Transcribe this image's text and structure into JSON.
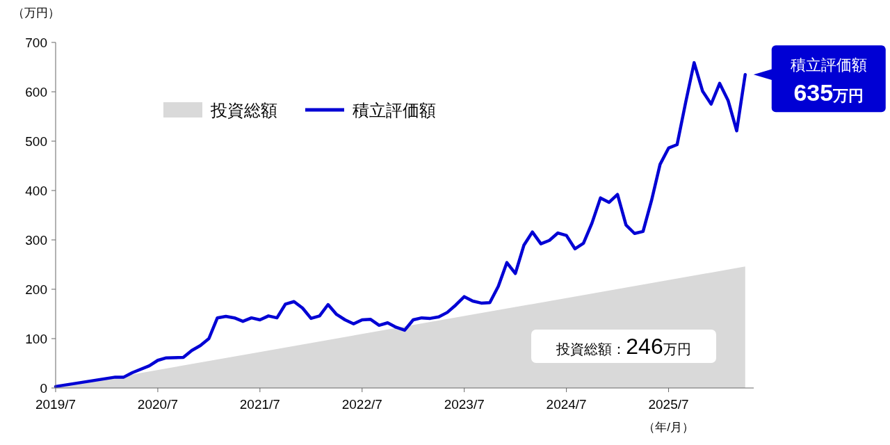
{
  "chart_data": {
    "type": "line",
    "ylabel": "（万円）",
    "xlabel": "（年/月）",
    "xlim": [
      "2019-07",
      "2026-05"
    ],
    "xticks": [
      {
        "value": "2019-07",
        "label": "2019/7"
      },
      {
        "value": "2020-07",
        "label": "2020/7"
      },
      {
        "value": "2021-07",
        "label": "2021/7"
      },
      {
        "value": "2022-07",
        "label": "2022/7"
      },
      {
        "value": "2023-07",
        "label": "2023/7"
      },
      {
        "value": "2024-07",
        "label": "2024/7"
      },
      {
        "value": "2025-07",
        "label": "2025/7"
      }
    ],
    "ylim": [
      0,
      700
    ],
    "yticks": [
      0,
      100,
      200,
      300,
      400,
      500,
      600,
      700
    ],
    "legend": "top left",
    "series": [
      {
        "name": "投資総額",
        "type": "area",
        "color": "#d9d9d9",
        "x": [
          "2019-07",
          "2026-04"
        ],
        "values": [
          0,
          246
        ]
      },
      {
        "name": "積立評価額",
        "type": "line",
        "color": "#0000d4",
        "x": [
          "2019-07",
          "2020-02",
          "2020-03",
          "2020-04",
          "2020-06",
          "2020-07",
          "2020-08",
          "2020-10",
          "2020-11",
          "2020-12",
          "2021-01",
          "2021-02",
          "2021-03",
          "2021-04",
          "2021-05",
          "2021-06",
          "2021-07",
          "2021-08",
          "2021-09",
          "2021-10",
          "2021-11",
          "2021-12",
          "2022-01",
          "2022-02",
          "2022-03",
          "2022-04",
          "2022-05",
          "2022-06",
          "2022-07",
          "2022-08",
          "2022-09",
          "2022-10",
          "2022-11",
          "2022-12",
          "2023-01",
          "2023-02",
          "2023-03",
          "2023-04",
          "2023-05",
          "2023-06",
          "2023-07",
          "2023-08",
          "2023-09",
          "2023-10",
          "2023-11",
          "2023-12",
          "2024-01",
          "2024-02",
          "2024-03",
          "2024-04",
          "2024-05",
          "2024-06",
          "2024-07",
          "2024-08",
          "2024-09",
          "2024-10",
          "2024-11",
          "2024-12",
          "2025-01",
          "2025-02",
          "2025-03",
          "2025-04",
          "2025-05",
          "2025-06",
          "2025-07",
          "2025-08",
          "2025-09",
          "2025-10",
          "2025-11",
          "2025-12",
          "2026-01",
          "2026-02",
          "2026-03",
          "2026-04"
        ],
        "values": [
          3,
          22,
          22,
          31,
          45,
          56,
          61,
          62,
          76,
          86,
          100,
          142,
          145,
          142,
          135,
          142,
          138,
          146,
          142,
          170,
          175,
          162,
          141,
          146,
          169,
          149,
          138,
          130,
          138,
          139,
          127,
          132,
          123,
          117,
          138,
          142,
          141,
          144,
          153,
          168,
          185,
          176,
          172,
          173,
          206,
          254,
          232,
          289,
          316,
          292,
          299,
          314,
          309,
          282,
          293,
          334,
          385,
          376,
          392,
          330,
          313,
          317,
          380,
          453,
          486,
          493,
          578,
          659,
          601,
          575,
          617,
          582,
          521,
          635
        ]
      }
    ],
    "annotations": [
      {
        "text": "積立評価額\n635万円",
        "x": "2026-04",
        "y": 635
      },
      "投資総額：246万円"
    ]
  }
}
